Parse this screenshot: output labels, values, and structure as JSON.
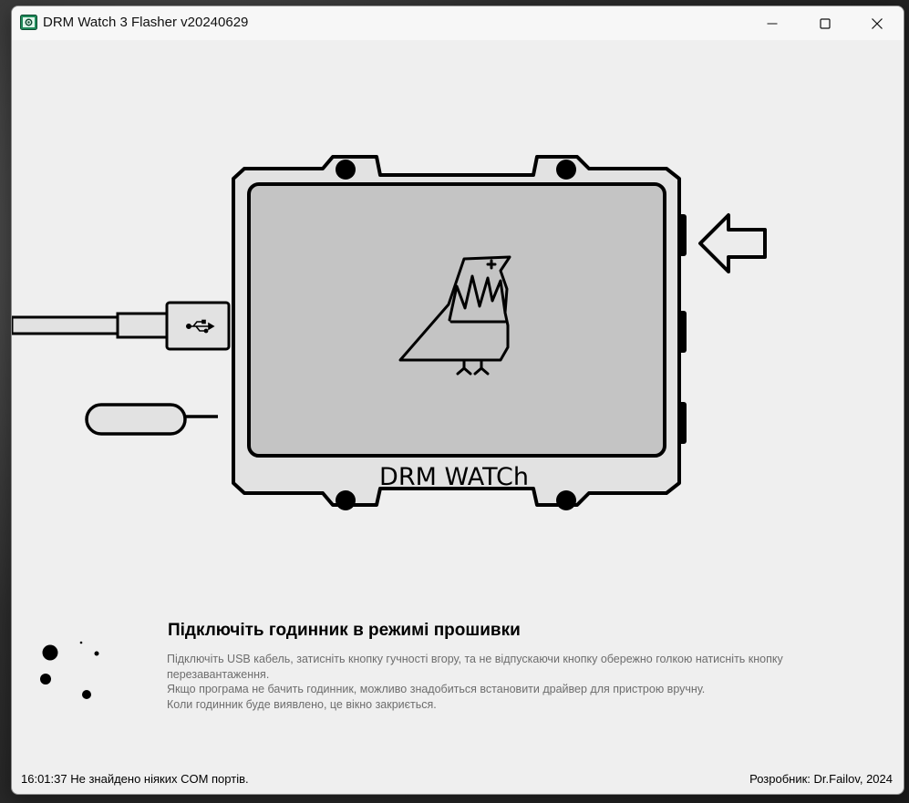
{
  "window": {
    "title": "DRM Watch 3 Flasher v20240629"
  },
  "illustration": {
    "device_label": "DRM WATCh",
    "icons": [
      "drm-watch-device",
      "usb-cable",
      "sim-eject-pin",
      "arrow-left-icon",
      "bird-logo-icon",
      "usb-icon"
    ]
  },
  "instructions": {
    "heading": "Підключіть годинник в режимі прошивки",
    "line1": "Підключіть USB кабель, затисніть кнопку гучності вгору, та не відпускаючи кнопку обережно голкою натисніть кнопку",
    "line2": "перезавантаження.",
    "line3": "Якщо програма не бачить годинник, можливо знадобиться встановити драйвер для пристрою вручну.",
    "line4": "Коли годинник буде виявлено, це вікно закриється."
  },
  "status": {
    "message": "16:01:37 Не знайдено ніяких COM портів.",
    "developer": "Розробник: Dr.Failov, 2024"
  },
  "colors": {
    "window_bg": "#efefef",
    "screen_fill": "#c4c4c4",
    "outline": "#000000",
    "desc_text": "#6d6d6d"
  }
}
